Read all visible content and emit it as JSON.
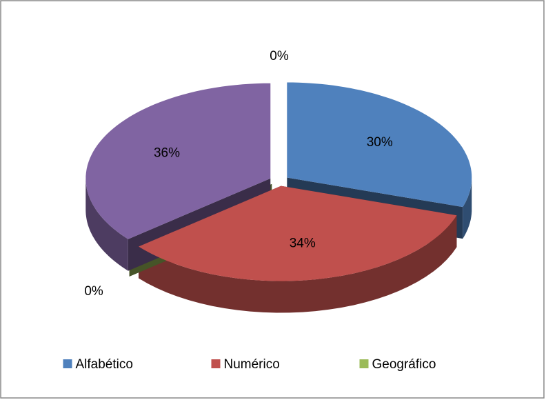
{
  "chart_data": {
    "type": "pie3d",
    "categories": [
      "Alfabético",
      "Numérico",
      "Geográfico",
      null,
      null
    ],
    "values": [
      30,
      34,
      0,
      36,
      0
    ],
    "value_labels": [
      "30%",
      "34%",
      "0%",
      "36%",
      "0%"
    ],
    "colors": [
      "#4f81bd",
      "#c0504d",
      "#9bbb59",
      "#8064a2",
      "#4bacc6"
    ],
    "legend": "bottom"
  }
}
